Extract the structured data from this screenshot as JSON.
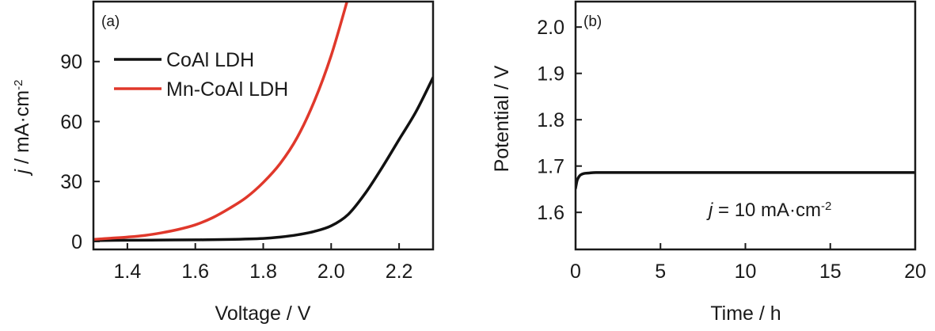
{
  "colors": {
    "series_black": "#111111",
    "series_red": "#e0382b",
    "axis": "#1a1a1a"
  },
  "chart_data": [
    {
      "type": "line",
      "panel_label": "(a)",
      "xlabel": "Voltage / V",
      "ylabel_italic": "j",
      "ylabel_rest": " / mA·cm",
      "ylabel_sup": "-2",
      "xlim": [
        1.3,
        2.3
      ],
      "ylim": [
        -4,
        120
      ],
      "xticks": [
        1.4,
        1.6,
        1.8,
        2.0,
        2.2
      ],
      "xtick_labels": [
        "1.4",
        "1.6",
        "1.8",
        "2.0",
        "2.2"
      ],
      "yticks": [
        0,
        30,
        60,
        90
      ],
      "ytick_labels": [
        "0",
        "30",
        "60",
        "90"
      ],
      "legend_position": "top-left",
      "series": [
        {
          "name": "CoAl LDH",
          "color": "#111111",
          "x": [
            1.3,
            1.4,
            1.5,
            1.6,
            1.7,
            1.8,
            1.85,
            1.9,
            1.95,
            2.0,
            2.05,
            2.1,
            2.15,
            2.2,
            2.25,
            2.3
          ],
          "y": [
            0.4,
            0.6,
            0.7,
            0.8,
            1.0,
            1.5,
            2.2,
            3.3,
            5.0,
            7.8,
            13.5,
            24.0,
            37.0,
            51.0,
            65.0,
            82.0
          ]
        },
        {
          "name": "Mn-CoAl LDH",
          "color": "#e0382b",
          "x": [
            1.3,
            1.35,
            1.4,
            1.45,
            1.5,
            1.55,
            1.6,
            1.65,
            1.7,
            1.75,
            1.8,
            1.85,
            1.9,
            1.95,
            2.0,
            2.05
          ],
          "y": [
            1.0,
            1.6,
            2.2,
            3.0,
            4.3,
            6.0,
            8.3,
            11.8,
            16.5,
            22.0,
            29.5,
            39.0,
            52.0,
            70.0,
            93.0,
            122.0
          ]
        }
      ]
    },
    {
      "type": "line",
      "panel_label": "(b)",
      "xlabel": "Time / h",
      "ylabel": "Potential / V",
      "xlim": [
        0,
        20
      ],
      "ylim": [
        1.52,
        2.055
      ],
      "xticks": [
        0,
        5,
        10,
        15,
        20
      ],
      "xtick_labels": [
        "0",
        "5",
        "10",
        "15",
        "20"
      ],
      "yticks": [
        1.6,
        1.7,
        1.8,
        1.9,
        2.0
      ],
      "ytick_labels": [
        "1.6",
        "1.7",
        "1.8",
        "1.9",
        "2.0"
      ],
      "annotation_italic": "j",
      "annotation_rest": " = 10 mA·cm",
      "annotation_sup": "-2",
      "series": [
        {
          "color": "#111111",
          "x": [
            0,
            0.05,
            0.1,
            0.2,
            0.3,
            0.5,
            0.8,
            1.2,
            2,
            5,
            10,
            15,
            20
          ],
          "y": [
            1.652,
            1.662,
            1.67,
            1.677,
            1.681,
            1.684,
            1.685,
            1.686,
            1.686,
            1.686,
            1.686,
            1.686,
            1.686
          ]
        }
      ]
    }
  ]
}
